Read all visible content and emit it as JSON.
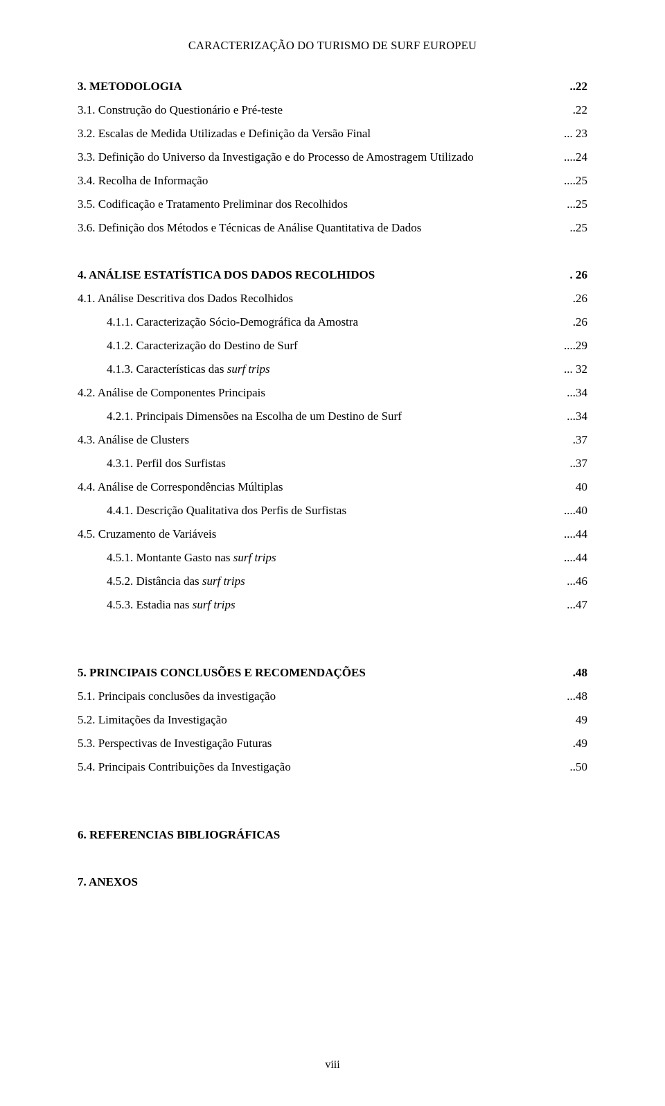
{
  "header": "CARACTERIZAÇÃO DO TURISMO DE SURF EUROPEU",
  "footer": "viii",
  "toc": [
    {
      "label": "3. METODOLOGIA",
      "page": "..22",
      "bold": true,
      "indent": 0,
      "italic": false
    },
    {
      "label": "3.1. Construção do Questionário e Pré-teste",
      "page": ".22",
      "bold": false,
      "indent": 1,
      "italic": false
    },
    {
      "label": "3.2. Escalas de Medida Utilizadas e Definição da Versão Final",
      "page": "... 23",
      "bold": false,
      "indent": 1,
      "italic": false
    },
    {
      "label": "3.3. Definição do Universo da Investigação e do Processo de Amostragem Utilizado",
      "page": "....24",
      "bold": false,
      "indent": 1,
      "italic": false
    },
    {
      "label": "3.4. Recolha de Informação",
      "page": "....25",
      "bold": false,
      "indent": 1,
      "italic": false
    },
    {
      "label": "3.5. Codificação e Tratamento Preliminar dos Recolhidos",
      "page": "...25",
      "bold": false,
      "indent": 1,
      "italic": false
    },
    {
      "label": "3.6. Definição dos Métodos e Técnicas de Análise Quantitativa de Dados",
      "page": "..25",
      "bold": false,
      "indent": 1,
      "italic": false
    },
    {
      "gap": "section-gap"
    },
    {
      "label": "4. ANÁLISE ESTATÍSTICA DOS DADOS RECOLHIDOS",
      "page": ". 26",
      "bold": true,
      "indent": 0,
      "italic": false
    },
    {
      "label": "4.1. Análise Descritiva dos Dados Recolhidos",
      "page": ".26",
      "bold": false,
      "indent": 1,
      "italic": false
    },
    {
      "label": "4.1.1. Caracterização Sócio-Demográfica da Amostra",
      "page": ".26",
      "bold": false,
      "indent": 2,
      "italic": false
    },
    {
      "label": "4.1.2. Caracterização do Destino de Surf",
      "page": "....29",
      "bold": false,
      "indent": 2,
      "italic": false
    },
    {
      "label": "4.1.3. Características das ",
      "label_italic": "surf trips",
      "page": "... 32",
      "bold": false,
      "indent": 2,
      "italic": true
    },
    {
      "label": "4.2. Análise de Componentes Principais",
      "page": "...34",
      "bold": false,
      "indent": 1,
      "italic": false
    },
    {
      "label": "4.2.1. Principais Dimensões na Escolha de um Destino de Surf",
      "page": "...34",
      "bold": false,
      "indent": 2,
      "italic": false
    },
    {
      "label": "4.3. Análise de Clusters",
      "page": ".37",
      "bold": false,
      "indent": 1,
      "italic": false
    },
    {
      "label": "4.3.1. Perfil dos Surfistas",
      "page": "..37",
      "bold": false,
      "indent": 2,
      "italic": false
    },
    {
      "label": "4.4. Análise de Correspondências Múltiplas",
      "page": "40",
      "bold": false,
      "indent": 1,
      "italic": false
    },
    {
      "label": "4.4.1. Descrição Qualitativa dos Perfis de Surfistas",
      "page": "....40",
      "bold": false,
      "indent": 2,
      "italic": false
    },
    {
      "label": "4.5. Cruzamento de Variáveis",
      "page": "....44",
      "bold": false,
      "indent": 1,
      "italic": false
    },
    {
      "label": "4.5.1. Montante Gasto nas ",
      "label_italic": "surf trips",
      "page": "....44",
      "bold": false,
      "indent": 2,
      "italic": true
    },
    {
      "label": "4.5.2. Distância das ",
      "label_italic": "surf trips",
      "page": "...46",
      "bold": false,
      "indent": 2,
      "italic": true
    },
    {
      "label": "4.5.3. Estadia nas ",
      "label_italic": "surf trips",
      "page": "...47",
      "bold": false,
      "indent": 2,
      "italic": true
    },
    {
      "gap": "section-gap-lg"
    },
    {
      "label": "5. PRINCIPAIS CONCLUSÕES E RECOMENDAÇÕES",
      "page": ".48",
      "bold": true,
      "indent": 0,
      "italic": false
    },
    {
      "label": "5.1. Principais conclusões da investigação",
      "page": "...48",
      "bold": false,
      "indent": 1,
      "italic": false
    },
    {
      "label": "5.2. Limitações da Investigação",
      "page": "49",
      "bold": false,
      "indent": 1,
      "italic": false
    },
    {
      "label": "5.3. Perspectivas de Investigação Futuras",
      "page": ".49",
      "bold": false,
      "indent": 1,
      "italic": false
    },
    {
      "label": "5.4. Principais Contribuições da Investigação",
      "page": "..50",
      "bold": false,
      "indent": 1,
      "italic": false
    },
    {
      "gap": "section-gap-lg"
    },
    {
      "standalone": "6. REFERENCIAS BIBLIOGRÁFICAS"
    },
    {
      "gap": "section-gap"
    },
    {
      "standalone": "7. ANEXOS"
    }
  ]
}
